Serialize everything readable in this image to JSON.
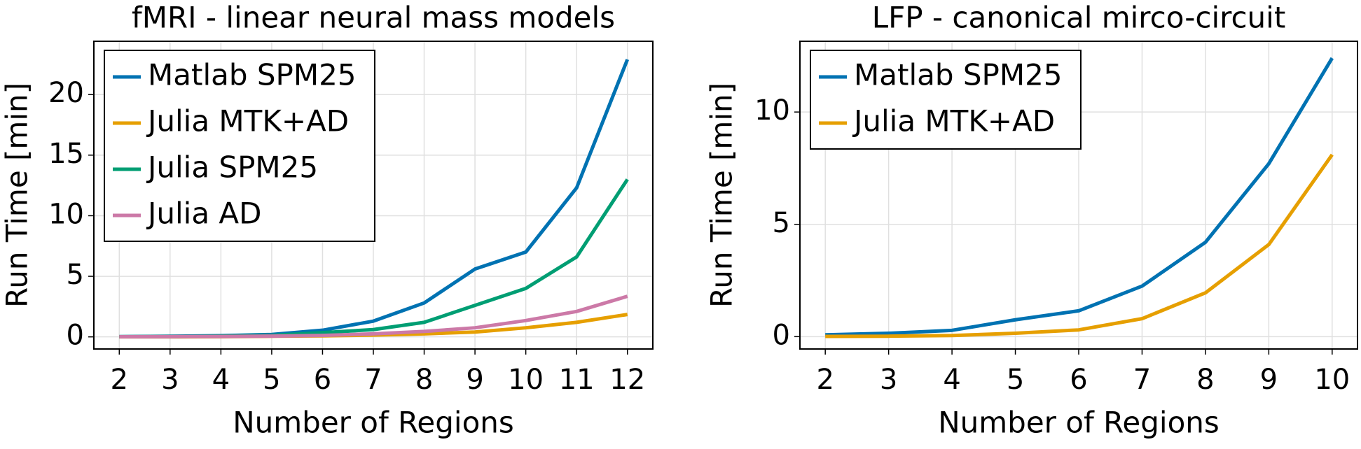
{
  "chart_data": [
    {
      "type": "line",
      "title": "fMRI - linear neural mass models",
      "x_label": "Number of Regions",
      "y_label": "Run Time [min]",
      "x": [
        2,
        3,
        4,
        5,
        6,
        7,
        8,
        9,
        10,
        11,
        12
      ],
      "series": [
        {
          "name": "Matlab SPM25",
          "color": "#0072b2",
          "values": [
            0.02,
            0.05,
            0.1,
            0.2,
            0.55,
            1.3,
            2.8,
            5.6,
            7.0,
            12.3,
            22.9
          ]
        },
        {
          "name": "Julia MTK+AD",
          "color": "#e69f00",
          "values": [
            0.0,
            0.0,
            0.02,
            0.05,
            0.08,
            0.15,
            0.25,
            0.4,
            0.75,
            1.2,
            1.85
          ]
        },
        {
          "name": "Julia SPM25",
          "color": "#009e73",
          "values": [
            0.02,
            0.03,
            0.06,
            0.12,
            0.35,
            0.6,
            1.2,
            2.6,
            4.0,
            6.6,
            13.0
          ]
        },
        {
          "name": "Julia AD",
          "color": "#cc79a7",
          "values": [
            0.01,
            0.02,
            0.03,
            0.06,
            0.12,
            0.25,
            0.45,
            0.75,
            1.35,
            2.1,
            3.35
          ]
        }
      ],
      "xlim": [
        1.5,
        12.5
      ],
      "ylim": [
        -1.0,
        24.4
      ],
      "xticks": [
        2,
        3,
        4,
        5,
        6,
        7,
        8,
        9,
        10,
        11,
        12
      ],
      "yticks": [
        0,
        5,
        10,
        15,
        20
      ],
      "grid": true,
      "legend": "top left"
    },
    {
      "type": "line",
      "title": "LFP - canonical mirco-circuit",
      "x_label": "Number of Regions",
      "y_label": "Run Time [min]",
      "x": [
        2,
        3,
        4,
        5,
        6,
        7,
        8,
        9,
        10
      ],
      "series": [
        {
          "name": "Matlab SPM25",
          "color": "#0072b2",
          "values": [
            0.08,
            0.15,
            0.28,
            0.75,
            1.15,
            2.25,
            4.2,
            7.7,
            12.4
          ]
        },
        {
          "name": "Julia MTK+AD",
          "color": "#e69f00",
          "values": [
            0.01,
            0.02,
            0.05,
            0.15,
            0.3,
            0.8,
            1.95,
            4.1,
            8.1
          ]
        }
      ],
      "xlim": [
        1.6,
        10.4
      ],
      "ylim": [
        -0.55,
        13.15
      ],
      "xticks": [
        2,
        3,
        4,
        5,
        6,
        7,
        8,
        9,
        10
      ],
      "yticks": [
        0,
        5,
        10
      ],
      "grid": true,
      "legend": "top left"
    }
  ]
}
